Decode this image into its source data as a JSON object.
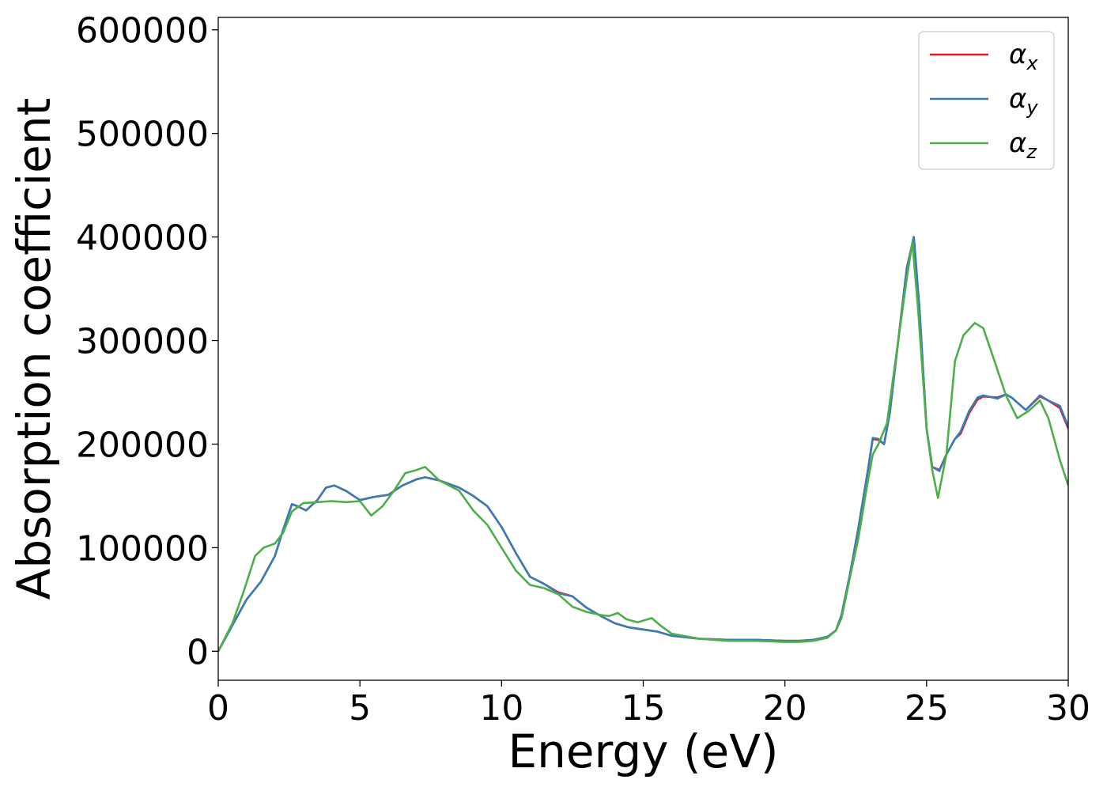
{
  "chart_data": {
    "type": "line",
    "title": "",
    "xlabel": "Energy (eV)",
    "ylabel": "Absorption coefficient",
    "xlim": [
      0,
      30
    ],
    "ylim": [
      -28000,
      612000
    ],
    "xticks": [
      0,
      5,
      10,
      15,
      20,
      25,
      30
    ],
    "yticks": [
      0,
      100000,
      200000,
      300000,
      400000,
      500000,
      600000
    ],
    "grid": false,
    "legend_position": "top-right",
    "series": [
      {
        "name": "α_x",
        "symbol": "α",
        "subscript": "x",
        "color": "#e41a1c",
        "x": [
          0,
          0.5,
          1.0,
          1.5,
          2.0,
          2.3,
          2.6,
          2.8,
          3.1,
          3.5,
          3.8,
          4.1,
          4.5,
          5.0,
          5.5,
          6.0,
          6.5,
          7.0,
          7.3,
          7.8,
          8.5,
          9.0,
          9.5,
          10.0,
          10.5,
          11.0,
          11.5,
          12.0,
          12.5,
          13.0,
          13.5,
          14.0,
          14.5,
          15.0,
          15.5,
          16.0,
          17.0,
          18.0,
          19.0,
          20.0,
          20.5,
          21.0,
          21.5,
          21.8,
          22.0,
          22.3,
          22.6,
          22.9,
          23.1,
          23.3,
          23.5,
          23.7,
          24.0,
          24.3,
          24.55,
          24.75,
          25.0,
          25.2,
          25.45,
          25.7,
          26.0,
          26.2,
          26.5,
          26.8,
          27.0,
          27.5,
          27.8,
          28.0,
          28.5,
          29.0,
          29.3,
          29.7,
          30.0
        ],
        "y": [
          0,
          25000,
          50000,
          67000,
          92000,
          118000,
          142000,
          140000,
          136000,
          146000,
          158000,
          160000,
          155000,
          146000,
          149000,
          151000,
          160000,
          166000,
          168000,
          165000,
          158000,
          150000,
          140000,
          120000,
          95000,
          72000,
          65000,
          57000,
          53000,
          42000,
          34000,
          27000,
          23000,
          21000,
          19000,
          15000,
          12000,
          11000,
          11000,
          10000,
          10000,
          11000,
          14000,
          20000,
          35000,
          75000,
          120000,
          170000,
          205000,
          204000,
          200000,
          230000,
          300000,
          370000,
          400000,
          330000,
          215000,
          178000,
          175000,
          190000,
          205000,
          210000,
          230000,
          243000,
          246000,
          245000,
          248000,
          245000,
          233000,
          246000,
          242000,
          235000,
          215000
        ]
      },
      {
        "name": "α_y",
        "symbol": "α",
        "subscript": "y",
        "color": "#377eb8",
        "x": [
          0,
          0.5,
          1.0,
          1.5,
          2.0,
          2.3,
          2.6,
          2.8,
          3.1,
          3.5,
          3.8,
          4.1,
          4.5,
          5.0,
          5.5,
          6.0,
          6.5,
          7.0,
          7.3,
          7.8,
          8.5,
          9.0,
          9.5,
          10.0,
          10.5,
          11.0,
          11.5,
          12.0,
          12.5,
          13.0,
          13.5,
          14.0,
          14.5,
          15.0,
          15.5,
          16.0,
          17.0,
          18.0,
          19.0,
          20.0,
          20.5,
          21.0,
          21.5,
          21.8,
          22.0,
          22.3,
          22.6,
          22.9,
          23.1,
          23.3,
          23.5,
          23.7,
          24.0,
          24.3,
          24.55,
          24.75,
          25.0,
          25.2,
          25.45,
          25.7,
          26.0,
          26.2,
          26.5,
          26.8,
          27.0,
          27.5,
          27.8,
          28.0,
          28.5,
          29.0,
          29.3,
          29.7,
          30.0
        ],
        "y": [
          0,
          25000,
          50000,
          67000,
          92000,
          118000,
          142000,
          140000,
          136000,
          146000,
          158000,
          160000,
          155000,
          146000,
          149000,
          151000,
          160000,
          166000,
          168000,
          165000,
          158000,
          150000,
          140000,
          120000,
          95000,
          72000,
          65000,
          56000,
          53000,
          42000,
          34000,
          27000,
          23000,
          21000,
          19000,
          15000,
          12000,
          11000,
          11000,
          10000,
          10000,
          11000,
          14000,
          20000,
          35000,
          75000,
          120000,
          170000,
          206000,
          205000,
          200000,
          230000,
          300000,
          370000,
          400000,
          330000,
          215000,
          178000,
          174000,
          190000,
          205000,
          212000,
          232000,
          245000,
          247000,
          244000,
          248000,
          245000,
          233000,
          247000,
          242000,
          237000,
          217000
        ]
      },
      {
        "name": "α_z",
        "symbol": "α",
        "subscript": "z",
        "color": "#4daf4a",
        "x": [
          0,
          0.5,
          0.9,
          1.3,
          1.6,
          2.0,
          2.3,
          2.6,
          3.0,
          3.5,
          4.0,
          4.5,
          5.0,
          5.4,
          5.8,
          6.2,
          6.6,
          7.0,
          7.3,
          7.8,
          8.5,
          9.0,
          9.5,
          10.0,
          10.5,
          11.0,
          11.5,
          12.0,
          12.5,
          13.0,
          13.5,
          13.8,
          14.1,
          14.4,
          14.8,
          15.3,
          15.6,
          16.0,
          17.0,
          18.0,
          19.0,
          20.0,
          20.5,
          21.0,
          21.5,
          21.8,
          22.0,
          22.3,
          22.6,
          22.9,
          23.1,
          23.3,
          23.6,
          24.0,
          24.3,
          24.5,
          24.7,
          25.0,
          25.2,
          25.4,
          25.7,
          26.0,
          26.3,
          26.7,
          27.0,
          27.4,
          27.8,
          28.2,
          28.6,
          29.0,
          29.3,
          29.7,
          30.0
        ],
        "y": [
          0,
          27000,
          58000,
          92000,
          100000,
          104000,
          115000,
          135000,
          143000,
          144000,
          145000,
          144000,
          145000,
          131000,
          140000,
          155000,
          172000,
          175000,
          178000,
          165000,
          155000,
          136000,
          122000,
          100000,
          78000,
          64000,
          61000,
          55000,
          43000,
          38000,
          35000,
          34000,
          37000,
          31000,
          28000,
          32000,
          25000,
          17000,
          12000,
          10000,
          10000,
          9000,
          9000,
          10000,
          13000,
          20000,
          32000,
          72000,
          110000,
          160000,
          190000,
          200000,
          220000,
          300000,
          360000,
          395000,
          330000,
          215000,
          175000,
          148000,
          190000,
          280000,
          305000,
          317000,
          312000,
          280000,
          247000,
          225000,
          232000,
          242000,
          225000,
          185000,
          160000
        ]
      }
    ]
  }
}
